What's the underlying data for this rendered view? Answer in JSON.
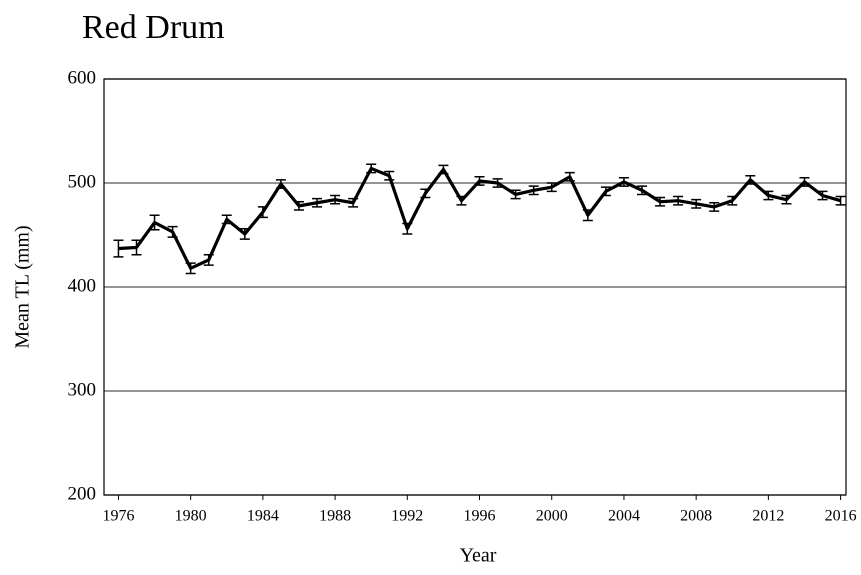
{
  "chart_data": {
    "type": "line",
    "title": "Red Drum",
    "xlabel": "Year",
    "ylabel": "Mean TL (mm)",
    "x": [
      1976,
      1977,
      1978,
      1979,
      1980,
      1981,
      1982,
      1983,
      1984,
      1985,
      1986,
      1987,
      1988,
      1989,
      1990,
      1991,
      1992,
      1993,
      1994,
      1995,
      1996,
      1997,
      1998,
      1999,
      2000,
      2001,
      2002,
      2003,
      2004,
      2005,
      2006,
      2007,
      2008,
      2009,
      2010,
      2011,
      2012,
      2013,
      2014,
      2015,
      2016
    ],
    "series": [
      {
        "name": "Red Drum",
        "color": "#000000",
        "values": [
          437,
          438,
          462,
          453,
          418,
          426,
          465,
          451,
          472,
          499,
          478,
          481,
          484,
          481,
          514,
          507,
          456,
          490,
          513,
          483,
          502,
          500,
          489,
          493,
          496,
          506,
          469,
          492,
          501,
          493,
          482,
          483,
          480,
          477,
          483,
          503,
          488,
          484,
          501,
          488,
          483
        ],
        "errors": [
          8,
          7,
          7,
          5,
          5,
          5,
          4,
          5,
          5,
          4,
          4,
          4,
          4,
          4,
          4,
          4,
          5,
          4,
          4,
          4,
          4,
          4,
          4,
          4,
          4,
          4,
          5,
          4,
          4,
          4,
          4,
          4,
          4,
          4,
          4,
          4,
          4,
          4,
          4,
          4,
          4
        ]
      }
    ],
    "xlim": [
      1975.2,
      2016.3
    ],
    "ylim": [
      200,
      600
    ],
    "xticks": [
      1976,
      1980,
      1984,
      1988,
      1992,
      1996,
      2000,
      2004,
      2008,
      2012,
      2016
    ],
    "yticks": [
      200,
      300,
      400,
      500,
      600
    ],
    "grid": true
  }
}
